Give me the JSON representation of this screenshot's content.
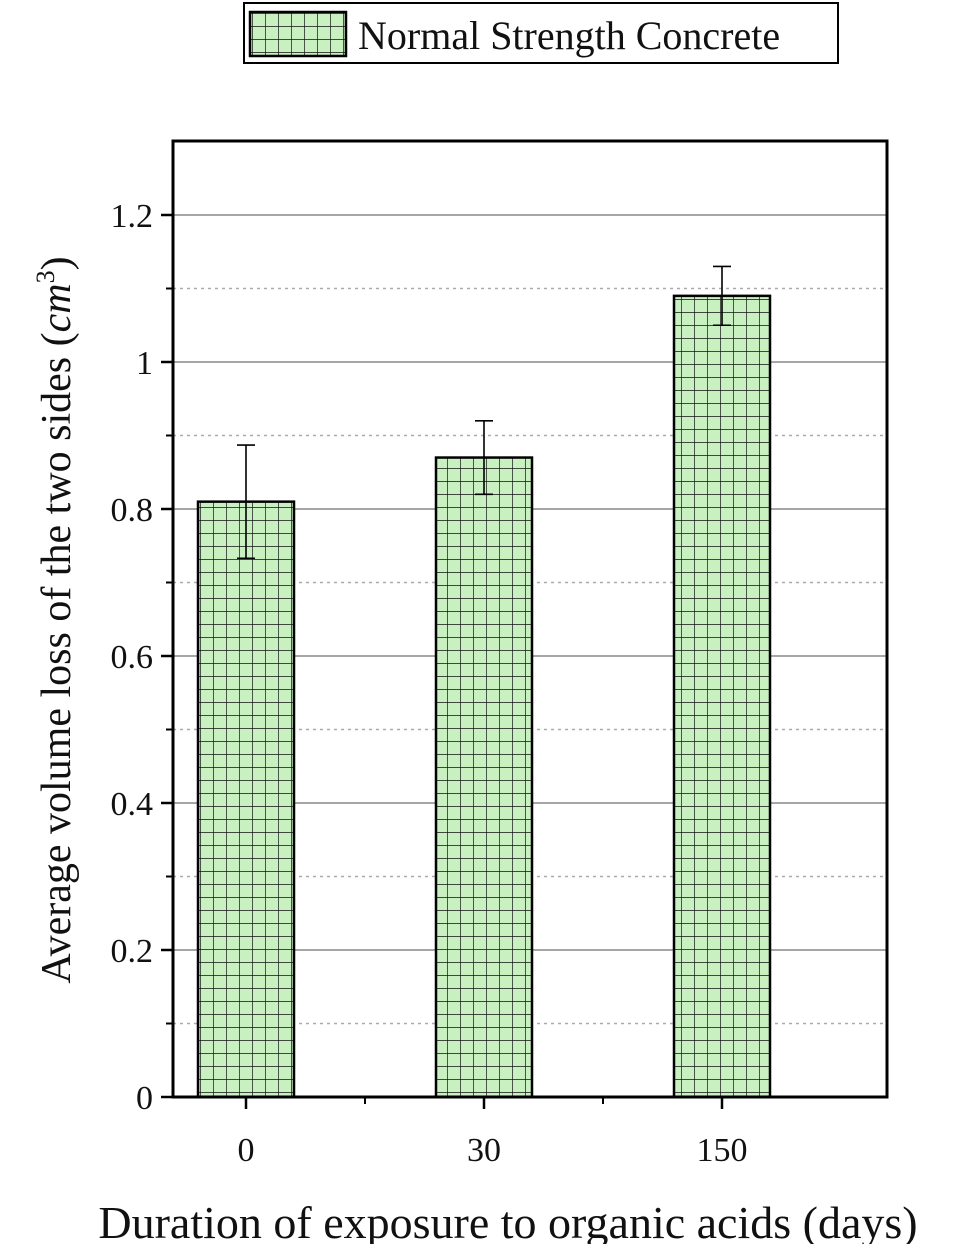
{
  "colors": {
    "bar_fill": "#c8f0c0",
    "bar_grid": "#111111",
    "grid_major": "#888888",
    "grid_minor": "#aaaaaa",
    "axis": "#000000"
  },
  "chart_data": {
    "type": "bar",
    "title": "",
    "xlabel": "Duration of exposure to organic acids (days)",
    "ylabel": {
      "main": "Average volume loss of the two sides (",
      "unit": "cm",
      "sup": "3",
      "close": ")"
    },
    "categories": [
      "0",
      "30",
      "150"
    ],
    "series": [
      {
        "name": "Normal Strength Concrete",
        "values": [
          0.81,
          0.87,
          1.09
        ],
        "error": [
          0.077,
          0.05,
          0.04
        ]
      }
    ],
    "ylim": [
      0,
      1.3
    ],
    "yticks": [
      0,
      0.2,
      0.4,
      0.6,
      0.8,
      1,
      1.2
    ],
    "ytick_labels": [
      "0",
      "0.2",
      "0.4",
      "0.6",
      "0.8",
      "1",
      "1.2"
    ],
    "minor_grid": [
      0.1,
      0.3,
      0.5,
      0.7,
      0.9,
      1.1
    ],
    "grid": true,
    "legend_position": "top-center",
    "bar_pattern": "crosshatch-grid"
  }
}
